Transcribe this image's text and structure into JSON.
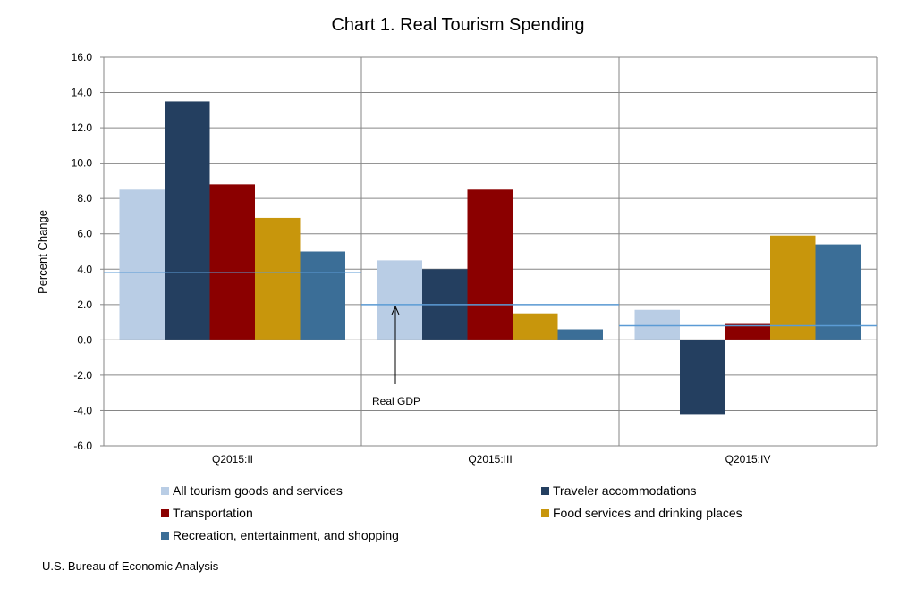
{
  "chart_data": {
    "type": "bar",
    "title": "Chart 1. Real Tourism Spending",
    "ylabel": "Percent Change",
    "xlabel": "",
    "ylim": [
      -6,
      16
    ],
    "yticks": [
      "16.0",
      "14.0",
      "12.0",
      "10.0",
      "8.0",
      "6.0",
      "4.0",
      "2.0",
      "0.0",
      "-2.0",
      "-4.0",
      "-6.0"
    ],
    "ytick_values": [
      16,
      14,
      12,
      10,
      8,
      6,
      4,
      2,
      0,
      -2,
      -4,
      -6
    ],
    "categories": [
      "Q2015:II",
      "Q2015:III",
      "Q2015:IV"
    ],
    "series": [
      {
        "name": "All tourism goods and services",
        "color": "#b9cde5",
        "values": [
          8.5,
          4.5,
          1.7
        ]
      },
      {
        "name": "Traveler accommodations",
        "color": "#243f60",
        "values": [
          13.5,
          4.0,
          -4.2
        ]
      },
      {
        "name": "Transportation",
        "color": "#8b0000",
        "values": [
          8.8,
          8.5,
          0.9
        ]
      },
      {
        "name": "Food services and drinking places",
        "color": "#c8960c",
        "values": [
          6.9,
          1.5,
          5.9
        ]
      },
      {
        "name": "Recreation, entertainment, and shopping",
        "color": "#3b6e97",
        "values": [
          5.0,
          0.6,
          5.4
        ]
      }
    ],
    "reference_line": {
      "name": "Real GDP",
      "color": "#5b9bd5",
      "values": [
        3.8,
        2.0,
        0.8
      ]
    },
    "annotation": "Real GDP",
    "grid": true,
    "legend_position": "bottom"
  },
  "source": "U.S. Bureau of Economic Analysis"
}
